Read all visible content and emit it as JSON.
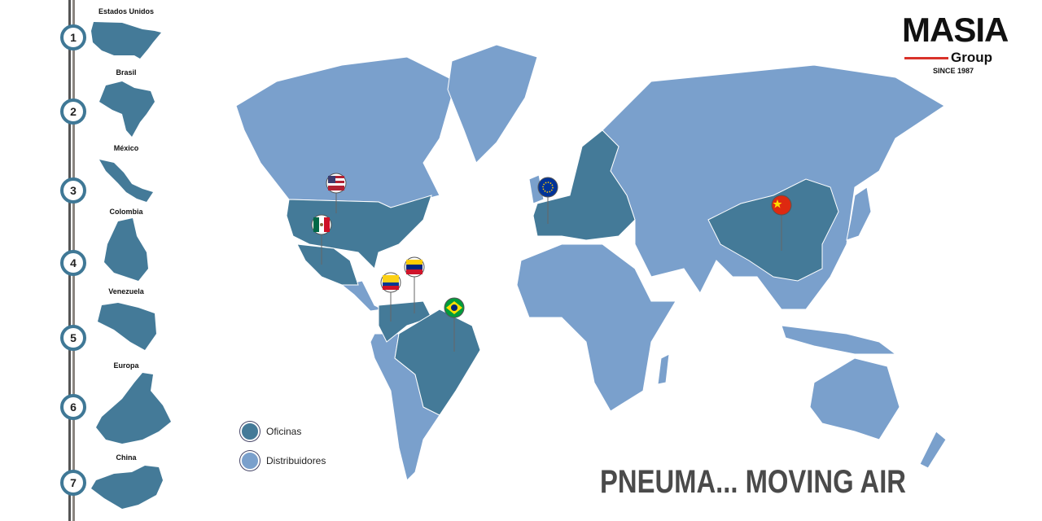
{
  "colors": {
    "oficinas": "#447a98",
    "distribuidores": "#7aa0cc",
    "accent": "#d9322a"
  },
  "timeline": [
    {
      "number": "1",
      "label": "Estados Unidos"
    },
    {
      "number": "2",
      "label": "Brasil"
    },
    {
      "number": "3",
      "label": "México"
    },
    {
      "number": "4",
      "label": "Colombia"
    },
    {
      "number": "5",
      "label": "Venezuela"
    },
    {
      "number": "6",
      "label": "Europa"
    },
    {
      "number": "7",
      "label": "China"
    }
  ],
  "logo": {
    "name": "MASIA",
    "sub": "Group",
    "since": "SINCE 1987"
  },
  "legend": {
    "oficinas": "Oficinas",
    "distribuidores": "Distribuidores"
  },
  "slogan": "PNEUMA... MOVING AIR",
  "pins": [
    "usa-flag",
    "mexico-flag",
    "colombia-flag",
    "venezuela-flag",
    "brazil-flag",
    "eu-flag",
    "china-flag"
  ]
}
